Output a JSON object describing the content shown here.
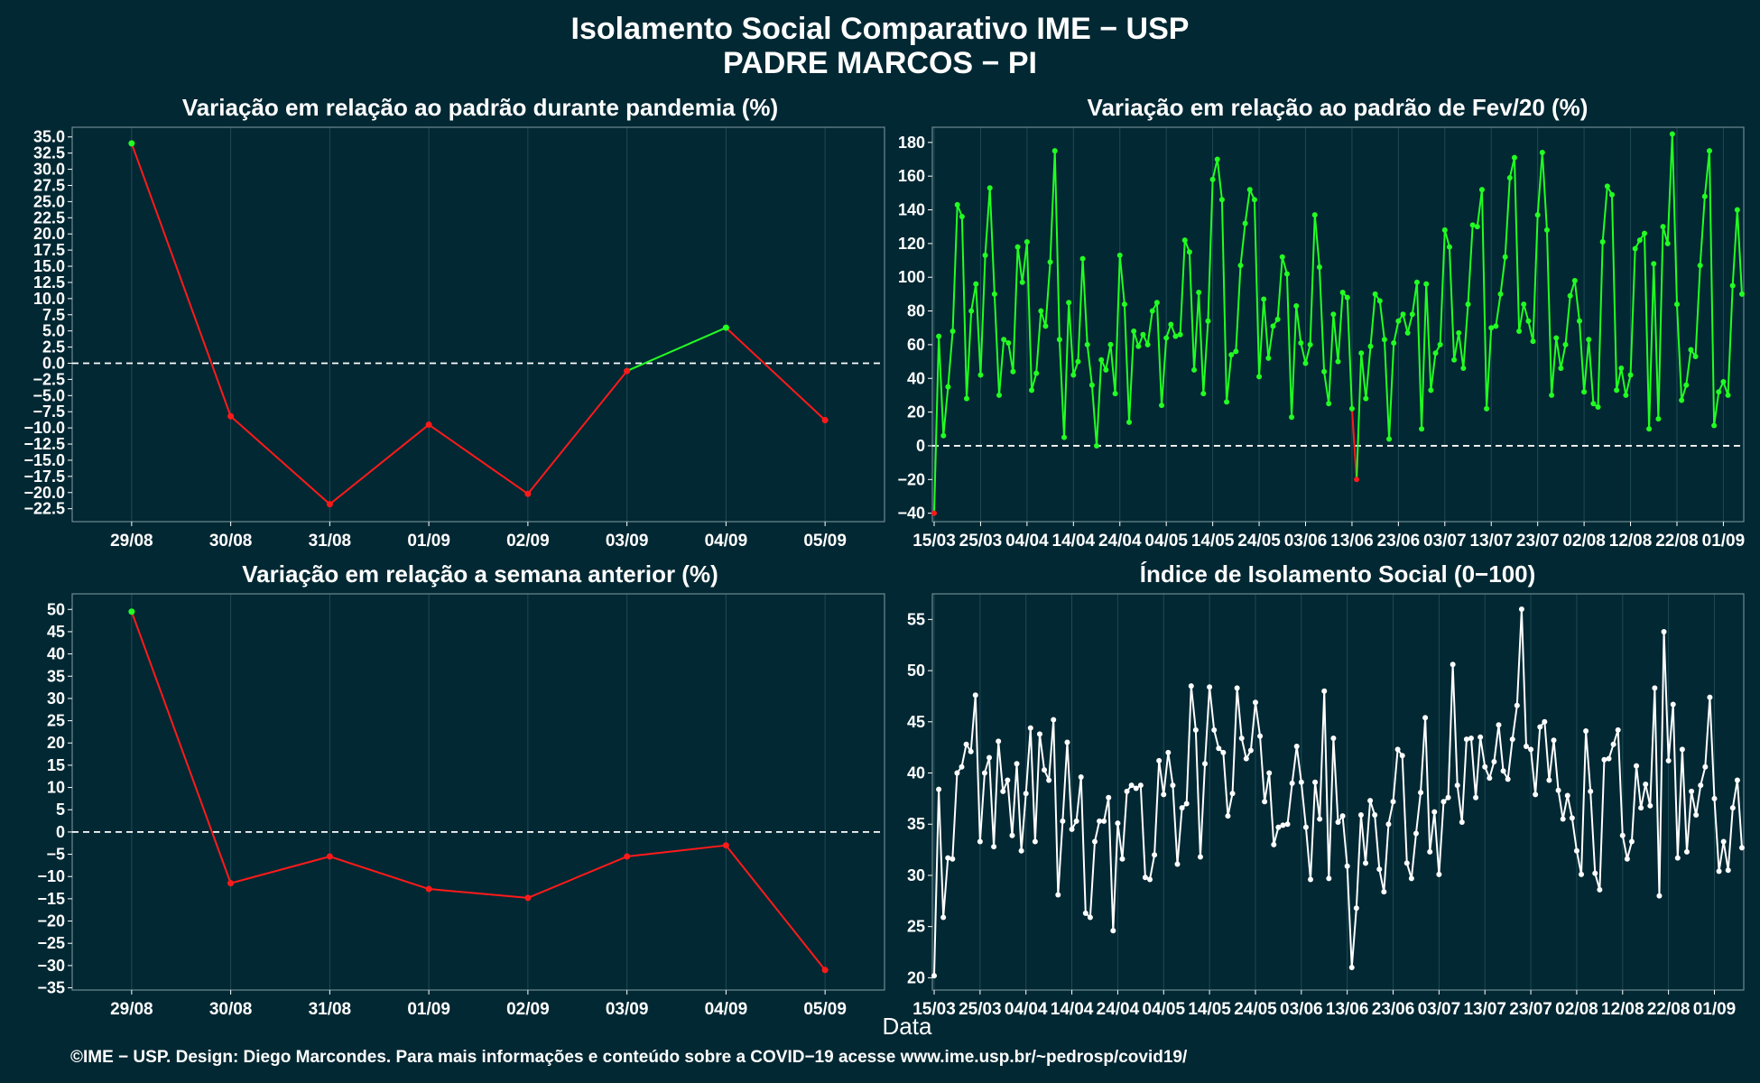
{
  "title": "Isolamento Social Comparativo IME − USP",
  "subtitle": "PADRE MARCOS − PI",
  "xlabel": "Data",
  "footer": "©IME − USP. Design: Diego Marcondes. Para mais informações e conteúdo sobre a COVID−19 acesse www.ime.usp.br/~pedrosp/covid19/",
  "colors": {
    "background": "#022833",
    "positive": "#22ff22",
    "negative": "#ff1a1a",
    "index": "#ffffff",
    "grid": "#1f4a55"
  },
  "chart_data": [
    {
      "id": "pandemia",
      "type": "line",
      "title": "Variação em relação ao padrão durante pandemia (%)",
      "categories": [
        "29/08",
        "30/08",
        "31/08",
        "01/09",
        "02/09",
        "03/09",
        "04/09",
        "05/09"
      ],
      "values": [
        34,
        -8.2,
        -21.8,
        -9.5,
        -20.2,
        -1.2,
        5.5,
        -8.8
      ],
      "ylim": [
        -24.5,
        36.5
      ],
      "yticks": [
        35.0,
        32.5,
        30.0,
        27.5,
        25.0,
        22.5,
        20.0,
        17.5,
        15.0,
        12.5,
        10.0,
        7.5,
        5.0,
        2.5,
        0.0,
        -2.5,
        -5.0,
        -7.5,
        -10.0,
        -12.5,
        -15.0,
        -17.5,
        -20.0,
        -22.5
      ],
      "ytick_labels": [
        "35.0",
        "32.5",
        "30.0",
        "27.5",
        "25.0",
        "22.5",
        "20.0",
        "17.5",
        "15.0",
        "12.5",
        "10.0",
        "7.5",
        "5.0",
        "2.5",
        "0.0",
        "−2.5",
        "−5.0",
        "−7.5",
        "−10.0",
        "−12.5",
        "−15.0",
        "−17.5",
        "−20.0",
        "−22.5"
      ],
      "reference_line": 0,
      "color_rule": "green when positive, red when negative"
    },
    {
      "id": "fev20",
      "type": "line",
      "title": "Variação em relação ao padrão de Fev/20 (%)",
      "x_tick_labels": [
        "15/03",
        "25/03",
        "04/04",
        "14/04",
        "24/04",
        "04/05",
        "14/05",
        "24/05",
        "03/06",
        "13/06",
        "23/06",
        "03/07",
        "13/07",
        "23/07",
        "02/08",
        "12/08",
        "22/08",
        "01/09"
      ],
      "values": [
        -40,
        65,
        6,
        35,
        68,
        143,
        136,
        28,
        80,
        96,
        42,
        113,
        153,
        90,
        30,
        63,
        61,
        44,
        118,
        97,
        121,
        33,
        43,
        80,
        71,
        109,
        175,
        63,
        5,
        85,
        42,
        50,
        111,
        60,
        36,
        0,
        51,
        45,
        60,
        31,
        113,
        84,
        14,
        68,
        59,
        66,
        60,
        80,
        85,
        24,
        64,
        72,
        65,
        66,
        122,
        115,
        45,
        91,
        31,
        74,
        158,
        170,
        146,
        26,
        54,
        56,
        107,
        132,
        152,
        146,
        41,
        87,
        52,
        71,
        75,
        112,
        102,
        17,
        83,
        61,
        49,
        60,
        137,
        106,
        44,
        25,
        78,
        50,
        91,
        88,
        22,
        -20,
        55,
        28,
        59,
        90,
        86,
        63,
        4,
        61,
        74,
        78,
        67,
        78,
        97,
        10,
        96,
        33,
        55,
        60,
        128,
        118,
        51,
        67,
        46,
        84,
        131,
        130,
        152,
        22,
        70,
        71,
        90,
        112,
        159,
        171,
        68,
        84,
        74,
        62,
        137,
        174,
        128,
        30,
        64,
        46,
        60,
        89,
        98,
        74,
        32,
        63,
        25,
        23,
        121,
        154,
        149,
        33,
        46,
        30,
        42,
        117,
        122,
        126,
        10,
        108,
        16,
        130,
        120,
        185,
        84,
        27,
        36,
        57,
        53,
        107,
        148,
        175,
        12,
        32,
        38,
        30,
        95,
        140,
        90
      ],
      "ylim": [
        -45,
        189
      ],
      "yticks": [
        180,
        160,
        140,
        120,
        100,
        80,
        60,
        40,
        20,
        0,
        -20,
        -40
      ],
      "ytick_labels": [
        "180",
        "160",
        "140",
        "120",
        "100",
        "80",
        "60",
        "40",
        "20",
        "0",
        "−20",
        "−40"
      ],
      "reference_line": 0,
      "color_rule": "green when positive, red when negative"
    },
    {
      "id": "semana",
      "type": "line",
      "title": "Variação em relação a semana anterior (%)",
      "categories": [
        "29/08",
        "30/08",
        "31/08",
        "01/09",
        "02/09",
        "03/09",
        "04/09",
        "05/09"
      ],
      "values": [
        49.5,
        -11.5,
        -5.5,
        -12.8,
        -14.8,
        -5.5,
        -3,
        -31
      ],
      "ylim": [
        -35.5,
        53.5
      ],
      "yticks": [
        50,
        45,
        40,
        35,
        30,
        25,
        20,
        15,
        10,
        5,
        0,
        -5,
        -10,
        -15,
        -20,
        -25,
        -30,
        -35
      ],
      "ytick_labels": [
        "50",
        "45",
        "40",
        "35",
        "30",
        "25",
        "20",
        "15",
        "10",
        "5",
        "0",
        "−5",
        "−10",
        "−15",
        "−20",
        "−25",
        "−30",
        "−35"
      ],
      "reference_line": 0,
      "color_rule": "green when positive, red when negative"
    },
    {
      "id": "indice",
      "type": "line",
      "title": "Índice de Isolamento Social (0−100)",
      "x_tick_labels": [
        "15/03",
        "25/03",
        "04/04",
        "14/04",
        "24/04",
        "04/05",
        "14/05",
        "24/05",
        "03/06",
        "13/06",
        "23/06",
        "03/07",
        "13/07",
        "23/07",
        "02/08",
        "12/08",
        "22/08",
        "01/09"
      ],
      "values": [
        20.2,
        38.4,
        25.9,
        31.7,
        31.6,
        40,
        40.6,
        42.8,
        42.1,
        47.6,
        33.3,
        40,
        41.5,
        32.8,
        43.1,
        38.2,
        39.3,
        33.9,
        40.9,
        32.4,
        38,
        44.4,
        33.3,
        43.8,
        40.3,
        39.3,
        45.2,
        28.1,
        35.3,
        43,
        34.5,
        35.3,
        39.6,
        26.3,
        25.9,
        33.3,
        35.3,
        35.3,
        37.6,
        24.6,
        35.1,
        31.6,
        38.2,
        38.8,
        38.5,
        38.8,
        29.8,
        29.6,
        32,
        41.2,
        37.9,
        42,
        38.8,
        31.1,
        36.6,
        37,
        48.5,
        44.2,
        31.8,
        40.9,
        48.4,
        44.2,
        42.4,
        42,
        35.8,
        38,
        48.3,
        43.4,
        41.4,
        42.2,
        46.9,
        43.6,
        37.2,
        40,
        33,
        34.7,
        34.9,
        35,
        39,
        42.6,
        39.1,
        34.7,
        29.6,
        39.1,
        35.5,
        48,
        29.7,
        43.4,
        35.2,
        35.8,
        30.9,
        21,
        26.8,
        35.9,
        31.2,
        37.3,
        35.9,
        30.6,
        28.4,
        35,
        37.2,
        42.3,
        41.7,
        31.2,
        29.7,
        34.1,
        38.1,
        45.4,
        32.3,
        36.2,
        30.1,
        37.2,
        37.6,
        50.6,
        38.8,
        35.2,
        43.3,
        43.4,
        37.6,
        43.5,
        40.6,
        39.5,
        41.1,
        44.7,
        40.2,
        39.4,
        43.3,
        46.6,
        56,
        42.6,
        42.3,
        37.9,
        44.5,
        45,
        39.3,
        43.2,
        38.3,
        35.5,
        37.8,
        35.6,
        32.4,
        30.1,
        44.1,
        38.2,
        30.2,
        28.6,
        41.3,
        41.4,
        42.8,
        44.2,
        33.9,
        31.6,
        33.3,
        40.7,
        36.6,
        38.9,
        36.8,
        48.3,
        28,
        53.8,
        41.2,
        46.7,
        31.7,
        42.3,
        32.3,
        38.2,
        35.9,
        38.8,
        40.6,
        47.4,
        37.5,
        30.4,
        33.3,
        30.5,
        36.6,
        39.3,
        32.7
      ],
      "ylim": [
        18.8,
        57.5
      ],
      "yticks": [
        55,
        50,
        45,
        40,
        35,
        30,
        25,
        20
      ],
      "ytick_labels": [
        "55",
        "50",
        "45",
        "40",
        "35",
        "30",
        "25",
        "20"
      ]
    }
  ]
}
